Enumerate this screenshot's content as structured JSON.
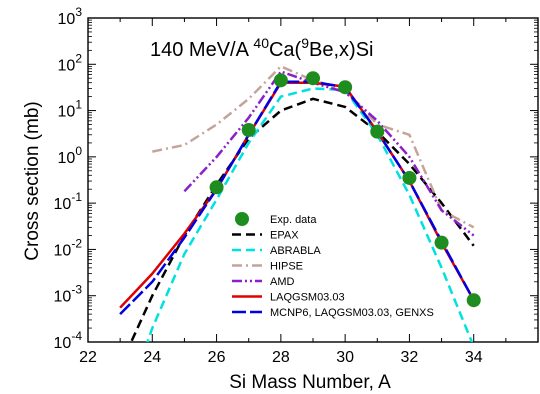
{
  "chart_data": {
    "type": "line",
    "title": {
      "prefix": "140 MeV/A ",
      "sup1": "40",
      "mid": "Ca(",
      "sup2": "9",
      "suffix": "Be,x)Si"
    },
    "xlabel": "Si Mass Number, A",
    "ylabel": "Cross section (mb)",
    "xlim": [
      22,
      36
    ],
    "ylim": [
      0.0001,
      1000
    ],
    "yscale": "log",
    "x_ticks": [
      22,
      24,
      26,
      28,
      30,
      32,
      34
    ],
    "x_tick_labels": [
      "22",
      "24",
      "26",
      "28",
      "30",
      "32",
      "34"
    ],
    "y_ticks": [
      {
        "base": "10",
        "exp": "-4",
        "value": 0.0001
      },
      {
        "base": "10",
        "exp": "-3",
        "value": 0.001
      },
      {
        "base": "10",
        "exp": "-2",
        "value": 0.01
      },
      {
        "base": "10",
        "exp": "-1",
        "value": 0.1
      },
      {
        "base": "10",
        "exp": "0",
        "value": 1
      },
      {
        "base": "10",
        "exp": "1",
        "value": 10
      },
      {
        "base": "10",
        "exp": "2",
        "value": 100
      },
      {
        "base": "10",
        "exp": "3",
        "value": 1000
      }
    ],
    "grid": false,
    "legend_position": "bottom-center",
    "series": [
      {
        "name": "Exp. data",
        "style": "marker",
        "color": "#1e8c1e",
        "x": [
          26,
          27,
          28,
          29,
          30,
          31,
          32,
          33,
          34
        ],
        "y": [
          0.22,
          3.8,
          45,
          50,
          32,
          3.5,
          0.35,
          0.014,
          0.0008
        ]
      },
      {
        "name": "EPAX",
        "style": "dashed",
        "color": "#000000",
        "x": [
          23,
          24,
          25,
          26,
          27,
          28,
          29,
          30,
          31,
          32,
          33,
          34
        ],
        "y": [
          3e-05,
          0.001,
          0.02,
          0.25,
          2.5,
          10,
          18,
          12,
          3.5,
          0.7,
          0.1,
          0.012
        ]
      },
      {
        "name": "ABRABLA",
        "style": "dashed",
        "color": "#00e0e0",
        "x": [
          23.5,
          24,
          25,
          26,
          27,
          28,
          29,
          30,
          31,
          32,
          33,
          34
        ],
        "y": [
          2e-05,
          0.0002,
          0.008,
          0.12,
          2,
          20,
          30,
          28,
          3,
          0.15,
          0.004,
          8e-05
        ]
      },
      {
        "name": "HIPSE",
        "style": "dashdot",
        "color": "#c4a49a",
        "x": [
          24,
          25,
          26,
          27,
          28,
          29,
          30,
          31,
          32,
          33,
          34
        ],
        "y": [
          1.3,
          1.8,
          5,
          18,
          90,
          45,
          28,
          5,
          3,
          0.07,
          0.03
        ]
      },
      {
        "name": "AMD",
        "style": "dashdotdot",
        "color": "#8b1fc8",
        "x": [
          25,
          26,
          27,
          28,
          29,
          30,
          31,
          32,
          33,
          34
        ],
        "y": [
          0.18,
          1,
          7,
          70,
          40,
          25,
          6,
          1,
          0.07,
          0.02
        ]
      },
      {
        "name": "LAQGSM03.03",
        "style": "solid",
        "color": "#e00000",
        "x": [
          23,
          24,
          25,
          26,
          27,
          28,
          29,
          30,
          31,
          32,
          33,
          34
        ],
        "y": [
          0.00055,
          0.003,
          0.022,
          0.2,
          3,
          40,
          40,
          33,
          3.5,
          0.3,
          0.014,
          0.0008
        ]
      },
      {
        "name": "MCNP6, LAQGSM03.03, GENXS",
        "style": "longdash",
        "color": "#0000e0",
        "x": [
          23,
          24,
          25,
          26,
          27,
          28,
          29,
          30,
          31,
          32,
          33,
          34
        ],
        "y": [
          0.0004,
          0.002,
          0.018,
          0.2,
          3,
          42,
          42,
          32,
          3.5,
          0.3,
          0.015,
          0.0008
        ]
      }
    ]
  }
}
